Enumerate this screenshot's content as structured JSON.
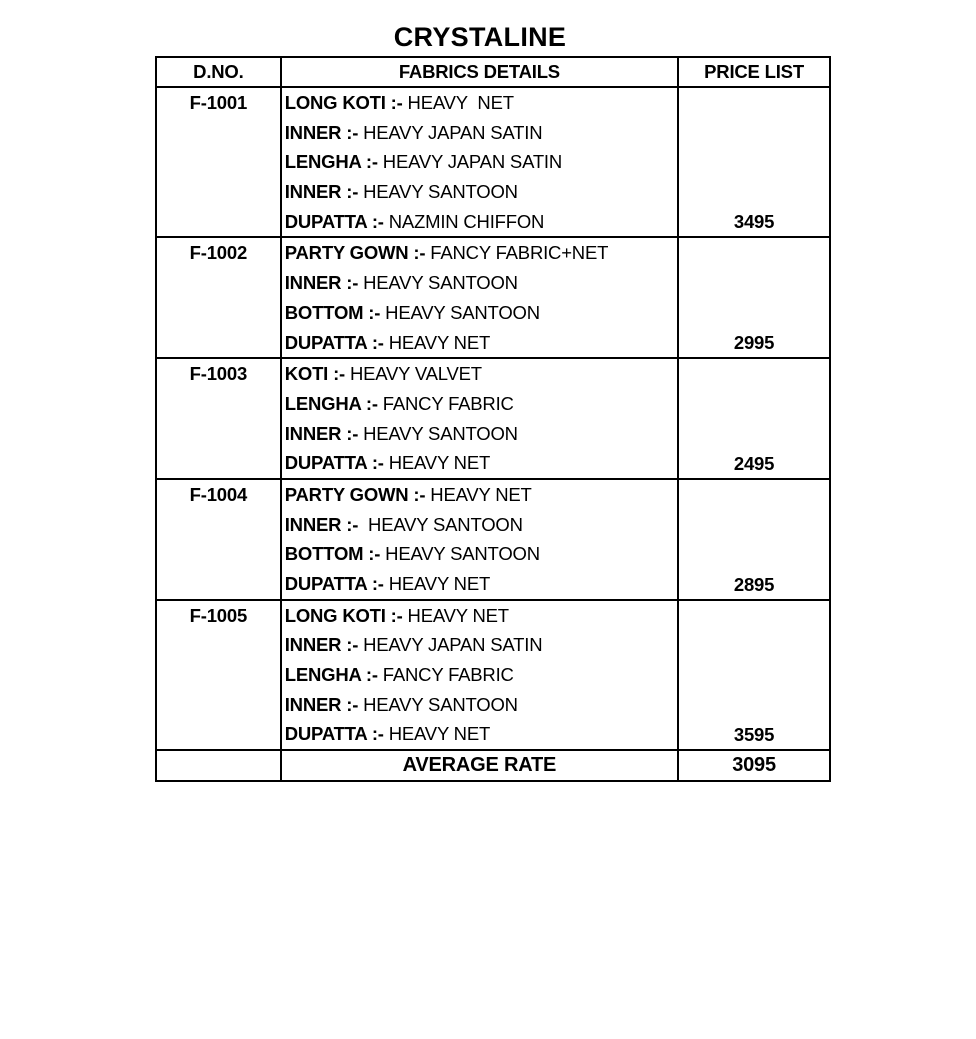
{
  "title": "CRYSTALINE",
  "headers": {
    "dno": "D.NO.",
    "fabrics": "FABRICS DETAILS",
    "price": "PRICE LIST"
  },
  "rows": [
    {
      "dno": "F-1001",
      "price": "3495",
      "details": [
        {
          "label": "LONG KOTI :-",
          "value": "HEAVY  NET"
        },
        {
          "label": "INNER :-",
          "value": "HEAVY JAPAN SATIN"
        },
        {
          "label": "LENGHA :-",
          "value": "HEAVY JAPAN SATIN"
        },
        {
          "label": "INNER :-",
          "value": "HEAVY SANTOON"
        },
        {
          "label": "DUPATTA :-",
          "value": "NAZMIN CHIFFON"
        }
      ]
    },
    {
      "dno": "F-1002",
      "price": "2995",
      "details": [
        {
          "label": "PARTY GOWN :-",
          "value": "FANCY FABRIC+NET"
        },
        {
          "label": "INNER :-",
          "value": "HEAVY SANTOON"
        },
        {
          "label": "BOTTOM :-",
          "value": "HEAVY SANTOON"
        },
        {
          "label": "DUPATTA :-",
          "value": "HEAVY NET"
        }
      ]
    },
    {
      "dno": "F-1003",
      "price": "2495",
      "details": [
        {
          "label": "KOTI :-",
          "value": "HEAVY VALVET"
        },
        {
          "label": "LENGHA :-",
          "value": "FANCY FABRIC"
        },
        {
          "label": "INNER :-",
          "value": "HEAVY SANTOON"
        },
        {
          "label": "DUPATTA :-",
          "value": "HEAVY NET"
        }
      ]
    },
    {
      "dno": "F-1004",
      "price": "2895",
      "details": [
        {
          "label": "PARTY GOWN :-",
          "value": "HEAVY NET"
        },
        {
          "label": "INNER :-",
          "value": " HEAVY SANTOON"
        },
        {
          "label": "BOTTOM :-",
          "value": "HEAVY SANTOON"
        },
        {
          "label": "DUPATTA :-",
          "value": "HEAVY NET"
        }
      ]
    },
    {
      "dno": "F-1005",
      "price": "3595",
      "details": [
        {
          "label": "LONG KOTI :-",
          "value": "HEAVY NET"
        },
        {
          "label": "INNER :-",
          "value": "HEAVY JAPAN SATIN"
        },
        {
          "label": "LENGHA :-",
          "value": "FANCY FABRIC"
        },
        {
          "label": "INNER :-",
          "value": "HEAVY SANTOON"
        },
        {
          "label": "DUPATTA :-",
          "value": "HEAVY NET"
        }
      ]
    }
  ],
  "average": {
    "label": "AVERAGE RATE",
    "value": "3095"
  }
}
